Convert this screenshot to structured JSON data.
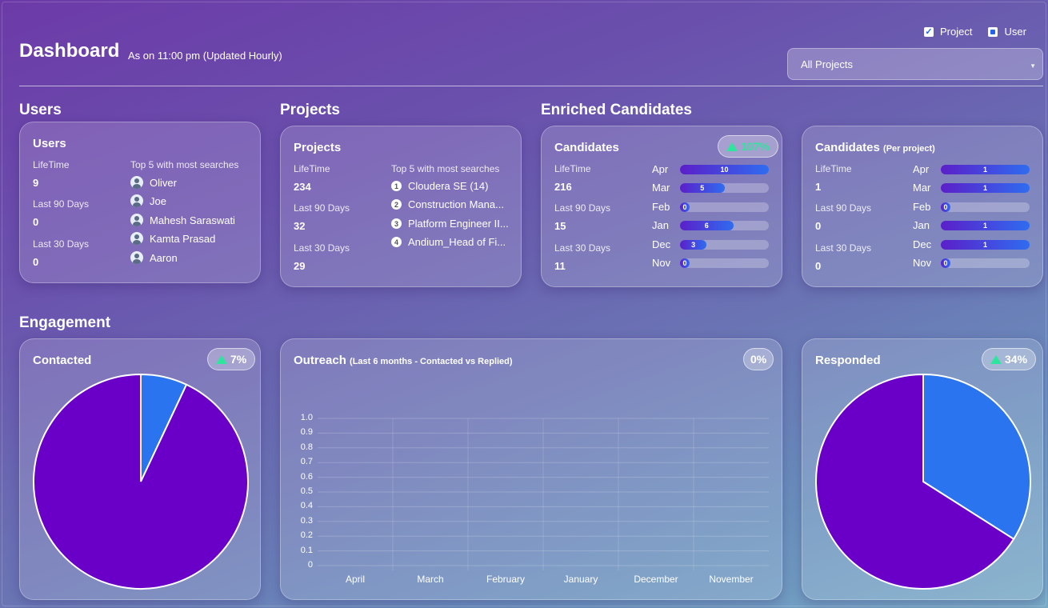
{
  "header": {
    "title": "Dashboard",
    "subtitle": "As on 11:00 pm (Updated Hourly)",
    "toggle_project": "Project",
    "toggle_user": "User",
    "project_select": "All Projects"
  },
  "sections": {
    "users": "Users",
    "projects": "Projects",
    "enriched": "Enriched Candidates",
    "engagement": "Engagement"
  },
  "users_card": {
    "title": "Users",
    "lifetime_label": "LifeTime",
    "lifetime": "9",
    "d90_label": "Last 90 Days",
    "d90": "0",
    "d30_label": "Last 30 Days",
    "d30": "0",
    "top_label": "Top 5 with most searches",
    "top": [
      "Oliver",
      "Joe",
      "Mahesh Saraswati",
      "Kamta Prasad",
      "Aaron"
    ]
  },
  "projects_card": {
    "title": "Projects",
    "lifetime_label": "LifeTime",
    "lifetime": "234",
    "d90_label": "Last 90 Days",
    "d90": "32",
    "d30_label": "Last 30 Days",
    "d30": "29",
    "top_label": "Top 5 with most searches",
    "top": [
      "Cloudera SE (14)",
      "Construction Mana...",
      "Platform Engineer II...",
      "Andium_Head of Fi..."
    ],
    "numbers": [
      "1",
      "2",
      "3",
      "4"
    ]
  },
  "candidates_card": {
    "title": "Candidates",
    "badge": "107%",
    "lifetime_label": "LifeTime",
    "lifetime": "216",
    "d90_label": "Last 90 Days",
    "d90": "15",
    "d30_label": "Last 30 Days",
    "d30": "11",
    "months": [
      "Apr",
      "Mar",
      "Feb",
      "Jan",
      "Dec",
      "Nov"
    ],
    "values": [
      10,
      5,
      0,
      6,
      3,
      0
    ],
    "max": 10
  },
  "per_project_card": {
    "title": "Candidates",
    "title_suffix": "(Per project)",
    "lifetime_label": "LifeTime",
    "lifetime": "1",
    "d90_label": "Last 90 Days",
    "d90": "0",
    "d30_label": "Last 30 Days",
    "d30": "0",
    "months": [
      "Apr",
      "Mar",
      "Feb",
      "Jan",
      "Dec",
      "Nov"
    ],
    "values": [
      1,
      1,
      0,
      1,
      1,
      0
    ],
    "max": 1
  },
  "contacted_card": {
    "title": "Contacted",
    "badge": "7%"
  },
  "outreach_card": {
    "title": "Outreach",
    "title_suffix": "(Last 6 months - Contacted vs Replied)",
    "badge": "0%"
  },
  "responded_card": {
    "title": "Responded",
    "badge": "34%"
  },
  "colors": {
    "purple": "#6a00c8",
    "blue": "#2a74f0",
    "green": "#2ee59d"
  },
  "chart_data": [
    {
      "type": "pie",
      "title": "Contacted",
      "slices": [
        {
          "value": 7,
          "color": "#2a74f0"
        },
        {
          "value": 93,
          "color": "#6a00c8"
        }
      ]
    },
    {
      "type": "line",
      "title": "Outreach",
      "categories": [
        "April",
        "March",
        "February",
        "January",
        "December",
        "November"
      ],
      "y_ticks": [
        "1.0",
        "0.9",
        "0.8",
        "0.7",
        "0.6",
        "0.5",
        "0.4",
        "0.3",
        "0.2",
        "0.1",
        "0"
      ],
      "ylim": [
        0,
        1
      ],
      "series": []
    },
    {
      "type": "pie",
      "title": "Responded",
      "slices": [
        {
          "value": 34,
          "color": "#2a74f0"
        },
        {
          "value": 66,
          "color": "#6a00c8"
        }
      ]
    }
  ]
}
